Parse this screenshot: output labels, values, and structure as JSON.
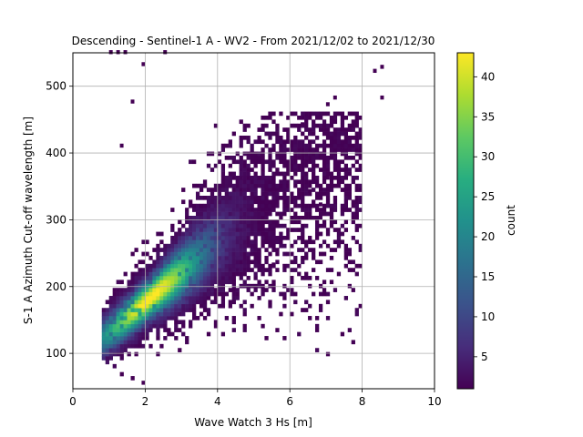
{
  "chart_data": {
    "type": "heatmap",
    "title": "Descending - Sentinel-1 A - WV2 - From 2021/12/02 to 2021/12/30",
    "xlabel": "Wave Watch 3 Hs [m]",
    "ylabel": "S-1 A Azimuth Cut-off wavelength [m]",
    "xlim": [
      0,
      10
    ],
    "ylim": [
      47,
      550
    ],
    "xticks": [
      0,
      2,
      4,
      6,
      8,
      10
    ],
    "yticks": [
      100,
      200,
      300,
      400,
      500
    ],
    "grid": true,
    "colorbar": {
      "label": "count",
      "range": [
        1,
        43
      ],
      "ticks": [
        5,
        10,
        15,
        20,
        25,
        30,
        35,
        40
      ],
      "colormap": "viridis"
    },
    "bin_size": {
      "x": 0.1,
      "y": 6
    },
    "density_model": {
      "ridge_center": {
        "x": 2.1,
        "y": 180
      },
      "ridge_slope_m_per_m": 45,
      "peak_count": 43,
      "outliers": [
        {
          "x": 1.0,
          "y": 548
        },
        {
          "x": 1.2,
          "y": 548
        },
        {
          "x": 1.4,
          "y": 548
        },
        {
          "x": 2.5,
          "y": 548
        },
        {
          "x": 1.9,
          "y": 530
        },
        {
          "x": 1.6,
          "y": 474
        },
        {
          "x": 1.3,
          "y": 408
        },
        {
          "x": 8.3,
          "y": 520
        },
        {
          "x": 8.5,
          "y": 526
        },
        {
          "x": 8.5,
          "y": 480
        },
        {
          "x": 7.2,
          "y": 480
        },
        {
          "x": 7.0,
          "y": 470
        },
        {
          "x": 1.9,
          "y": 53
        },
        {
          "x": 7.9,
          "y": 400
        },
        {
          "x": 7.3,
          "y": 380
        },
        {
          "x": 7.0,
          "y": 360
        },
        {
          "x": 6.5,
          "y": 340
        },
        {
          "x": 6.8,
          "y": 320
        },
        {
          "x": 5.5,
          "y": 230
        },
        {
          "x": 6.8,
          "y": 300
        },
        {
          "x": 6.3,
          "y": 440
        }
      ]
    }
  }
}
